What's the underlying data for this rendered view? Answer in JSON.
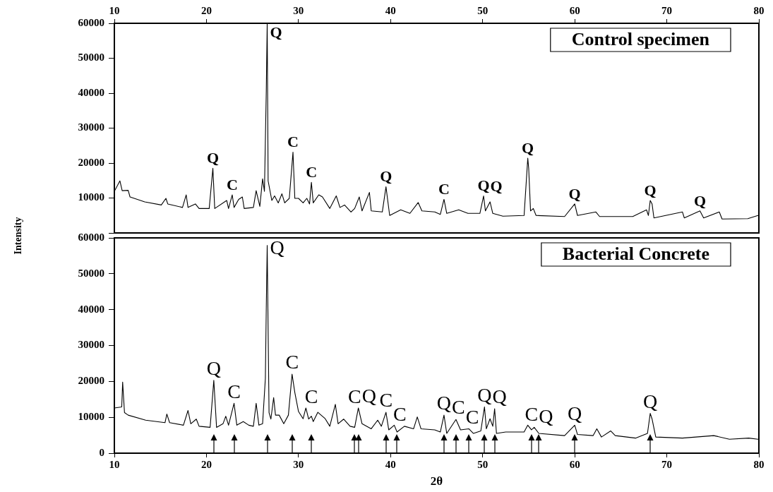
{
  "chart_data": [
    {
      "type": "line",
      "title": "Control specimen",
      "ylabel": "Intensity",
      "xlim": [
        10,
        80
      ],
      "xticks": [
        10,
        20,
        30,
        40,
        50,
        60,
        70,
        80
      ],
      "ylim": [
        0,
        60000
      ],
      "yticks": [
        {
          "value": 0,
          "label": null
        },
        10000,
        20000,
        30000,
        40000,
        50000,
        60000
      ],
      "x": [
        10.0,
        10.6,
        10.85,
        11.5,
        11.7,
        13.3,
        15.1,
        15.6,
        15.8,
        17.4,
        17.8,
        18.0,
        18.8,
        19.2,
        20.3,
        20.7,
        20.9,
        22.2,
        22.4,
        22.8,
        23.0,
        23.5,
        23.9,
        24.1,
        25.1,
        25.4,
        25.8,
        26.1,
        26.3,
        26.5,
        26.6,
        26.7,
        27.1,
        27.4,
        27.8,
        28.2,
        28.5,
        29.0,
        29.4,
        29.6,
        30.0,
        30.5,
        30.9,
        31.2,
        31.4,
        31.6,
        32.2,
        32.6,
        33.4,
        34.1,
        34.5,
        35.0,
        35.7,
        36.1,
        36.6,
        36.9,
        37.7,
        37.9,
        39.1,
        39.5,
        39.9,
        41.1,
        42.1,
        43.0,
        43.4,
        44.8,
        45.4,
        45.8,
        46.1,
        47.4,
        48.4,
        49.7,
        50.1,
        50.3,
        50.8,
        51.1,
        52.2,
        54.5,
        54.9,
        55.0,
        55.2,
        55.5,
        55.8,
        58.9,
        60.0,
        60.3,
        62.3,
        62.7,
        66.3,
        67.8,
        68.0,
        68.2,
        68.4,
        68.6,
        71.7,
        71.9,
        73.6,
        74.0,
        75.7,
        76.0,
        78.8,
        79.9
      ],
      "series": [
        {
          "color": "#000000",
          "values": [
            11900,
            14900,
            12100,
            12200,
            10300,
            8900,
            8000,
            9900,
            8300,
            7300,
            10900,
            7300,
            8300,
            7000,
            7000,
            18500,
            7000,
            9300,
            7000,
            10900,
            7300,
            9600,
            10300,
            7000,
            7300,
            12100,
            7600,
            15500,
            11900,
            40800,
            60000,
            14900,
            9300,
            10600,
            8600,
            11200,
            8600,
            9900,
            23100,
            9900,
            9900,
            8600,
            9900,
            8300,
            14500,
            8600,
            10900,
            10300,
            7000,
            10600,
            7300,
            8000,
            6000,
            7000,
            10300,
            6300,
            11600,
            6300,
            6000,
            13200,
            5000,
            6600,
            5600,
            8700,
            6300,
            6000,
            5300,
            9600,
            5600,
            6600,
            5600,
            5600,
            10600,
            6300,
            8900,
            5600,
            4800,
            5000,
            21400,
            18500,
            6300,
            7000,
            5000,
            4700,
            8300,
            5000,
            6000,
            4700,
            4700,
            6600,
            5000,
            9300,
            8300,
            4300,
            6000,
            4300,
            6300,
            4300,
            6000,
            4000,
            4100,
            5000
          ]
        }
      ],
      "annotations": [
        {
          "text": "Q",
          "x": 20.7,
          "y": 18500
        },
        {
          "text": "C",
          "x": 22.8,
          "y": 10900
        },
        {
          "text": "Q",
          "x": 26.6,
          "y": 60000
        },
        {
          "text": "C",
          "x": 29.4,
          "y": 23100
        },
        {
          "text": "C",
          "x": 31.4,
          "y": 14500
        },
        {
          "text": "Q",
          "x": 39.5,
          "y": 13200
        },
        {
          "text": "C",
          "x": 45.8,
          "y": 9600
        },
        {
          "text": "Q",
          "x": 50.1,
          "y": 10600
        },
        {
          "text": "Q",
          "x": 50.8,
          "y": 8900
        },
        {
          "text": "Q",
          "x": 54.9,
          "y": 21400
        },
        {
          "text": "Q",
          "x": 60.0,
          "y": 8300
        },
        {
          "text": "Q",
          "x": 68.2,
          "y": 9300
        },
        {
          "text": "Q",
          "x": 73.6,
          "y": 6300
        }
      ]
    },
    {
      "type": "line",
      "title": "Bacterial Concrete",
      "xlabel": "2θ",
      "xlim": [
        10,
        80
      ],
      "xticks": [
        10,
        20,
        30,
        40,
        50,
        60,
        70,
        80
      ],
      "ylim": [
        0,
        60000
      ],
      "yticks": [
        0,
        10000,
        20000,
        30000,
        40000,
        50000,
        60000
      ],
      "x": [
        10.0,
        10.8,
        10.9,
        11.1,
        11.5,
        13.4,
        15.5,
        15.7,
        16.0,
        17.5,
        18.0,
        18.3,
        18.9,
        19.2,
        20.4,
        20.8,
        21.1,
        21.8,
        22.1,
        22.4,
        23.0,
        23.3,
        24.0,
        24.6,
        25.1,
        25.4,
        25.7,
        26.1,
        26.4,
        26.5,
        26.6,
        26.8,
        27.0,
        27.3,
        27.5,
        27.9,
        28.4,
        28.9,
        29.3,
        29.6,
        30.0,
        30.5,
        30.8,
        31.1,
        31.4,
        31.6,
        32.1,
        32.9,
        33.4,
        34.0,
        34.3,
        34.9,
        35.6,
        36.1,
        36.5,
        36.9,
        37.9,
        38.6,
        39.0,
        39.5,
        39.8,
        40.4,
        40.7,
        41.5,
        42.5,
        42.9,
        43.3,
        44.8,
        45.4,
        45.8,
        46.1,
        47.1,
        47.6,
        48.5,
        49.0,
        49.8,
        50.2,
        50.4,
        50.8,
        51.1,
        51.3,
        51.5,
        52.5,
        54.5,
        54.9,
        55.3,
        55.6,
        56.1,
        58.9,
        60.0,
        60.3,
        62.0,
        62.4,
        62.9,
        63.9,
        64.4,
        66.6,
        67.9,
        68.2,
        68.4,
        68.8,
        71.7,
        75.1,
        76.8,
        78.9,
        79.9
      ],
      "series": [
        {
          "color": "#000000",
          "values": [
            12600,
            12900,
            19800,
            11300,
            10600,
            9200,
            8500,
            10900,
            8500,
            7800,
            11900,
            8200,
            9500,
            7500,
            7200,
            20300,
            7200,
            8200,
            10300,
            7800,
            13900,
            7800,
            8800,
            7800,
            7500,
            13900,
            7800,
            8200,
            20800,
            40500,
            57900,
            11300,
            9500,
            15500,
            10600,
            10600,
            8200,
            10600,
            22000,
            16900,
            11600,
            9600,
            12600,
            9500,
            10300,
            8800,
            11400,
            9600,
            7500,
            13600,
            8200,
            9500,
            7500,
            7200,
            12600,
            8200,
            6800,
            9200,
            7500,
            11400,
            6500,
            7800,
            5900,
            7500,
            6800,
            10100,
            6800,
            6500,
            5900,
            10600,
            5500,
            9400,
            6500,
            6800,
            5500,
            6200,
            12900,
            6800,
            9600,
            7500,
            12400,
            5500,
            5900,
            5900,
            7800,
            6500,
            7200,
            5500,
            4900,
            7800,
            5200,
            4900,
            6800,
            4500,
            6200,
            4900,
            4200,
            5500,
            11100,
            9500,
            4500,
            4200,
            4900,
            3900,
            4200,
            3900
          ]
        }
      ],
      "annotations": [
        {
          "text": "Q",
          "x": 20.8,
          "y": 20300
        },
        {
          "text": "C",
          "x": 23.0,
          "y": 13900
        },
        {
          "text": "Q",
          "x": 26.6,
          "y": 57900
        },
        {
          "text": "C",
          "x": 29.3,
          "y": 22000
        },
        {
          "text": "C",
          "x": 31.4,
          "y": 10300
        },
        {
          "text": "C",
          "x": 36.1,
          "y": 7200
        },
        {
          "text": "Q",
          "x": 36.5,
          "y": 12600
        },
        {
          "text": "C",
          "x": 39.5,
          "y": 11400
        },
        {
          "text": "C",
          "x": 40.7,
          "y": 5900
        },
        {
          "text": "Q",
          "x": 45.8,
          "y": 10600
        },
        {
          "text": "C",
          "x": 47.1,
          "y": 9400
        },
        {
          "text": "C",
          "x": 48.5,
          "y": 6800
        },
        {
          "text": "Q",
          "x": 50.2,
          "y": 12900
        },
        {
          "text": "Q",
          "x": 51.3,
          "y": 12400
        },
        {
          "text": "C",
          "x": 55.3,
          "y": 6500
        },
        {
          "text": "Q",
          "x": 56.1,
          "y": 5500
        },
        {
          "text": "Q",
          "x": 60.0,
          "y": 7800
        },
        {
          "text": "Q",
          "x": 68.2,
          "y": 11100
        }
      ]
    }
  ]
}
